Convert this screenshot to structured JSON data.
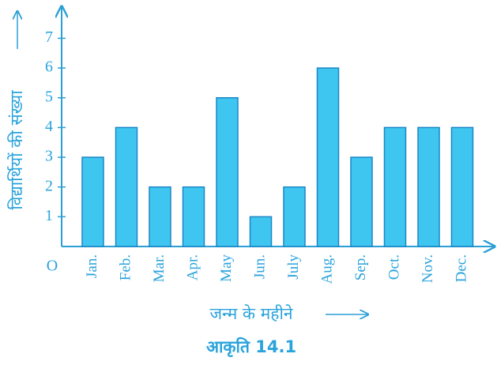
{
  "chart_data": {
    "type": "bar",
    "title": "आकृति 14.1",
    "y_label": "विद्यार्थियों की संख्या",
    "x_label": "जन्म के महीने",
    "origin_label": "O",
    "categories": [
      "Jan.",
      "Feb.",
      "Mar.",
      "Apr.",
      "May",
      "Jun.",
      "July",
      "Aug.",
      "Sep.",
      "Oct.",
      "Nov.",
      "Dec."
    ],
    "values": [
      3,
      4,
      2,
      2,
      5,
      1,
      2,
      6,
      3,
      4,
      4,
      4
    ],
    "color": "#3ec6f0",
    "ylim": [
      0,
      8
    ],
    "yticks": [
      1,
      2,
      3,
      4,
      5,
      6,
      7
    ]
  }
}
